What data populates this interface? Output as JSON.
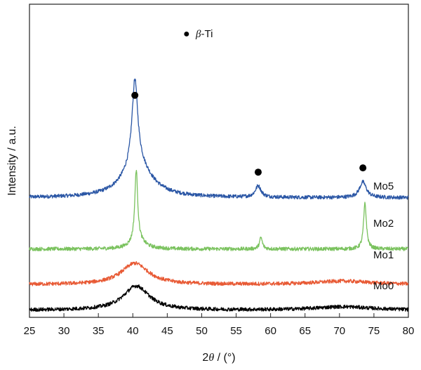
{
  "chart_data": {
    "type": "line",
    "title": "",
    "xlabel": {
      "prefix": "2",
      "symbol": "θ",
      "suffix": " / (°)"
    },
    "ylabel": "Intensity / a.u.",
    "xlim": [
      25,
      80
    ],
    "xticks": [
      25,
      30,
      35,
      40,
      45,
      50,
      55,
      60,
      65,
      70,
      75,
      80
    ],
    "ylim": [
      0,
      110
    ],
    "grid": false,
    "legend": {
      "marker": "●",
      "symbol": "β",
      "label": "-Ti",
      "placement": "top-center"
    },
    "marker_color": "#000000",
    "series": [
      {
        "name": "Mo5",
        "color": "#2a56a5",
        "baseline": 42,
        "peaks": [
          {
            "x": 40.3,
            "height": 30,
            "width": 0.5
          },
          {
            "x": 40.6,
            "height": 12,
            "width": 2.5
          },
          {
            "x": 58.2,
            "height": 4,
            "width": 0.5
          },
          {
            "x": 73.4,
            "height": 5.5,
            "width": 0.6
          }
        ],
        "beta_markers": [
          {
            "x": 40.3,
            "y": 78
          },
          {
            "x": 58.2,
            "y": 51
          },
          {
            "x": 73.4,
            "y": 52.5
          }
        ]
      },
      {
        "name": "Mo2",
        "color": "#7ac25e",
        "baseline": 24,
        "peaks": [
          {
            "x": 40.5,
            "height": 25,
            "width": 0.25
          },
          {
            "x": 40.7,
            "height": 3,
            "width": 1.2
          },
          {
            "x": 58.6,
            "height": 4,
            "width": 0.25
          },
          {
            "x": 73.7,
            "height": 16,
            "width": 0.25
          }
        ],
        "beta_markers": []
      },
      {
        "name": "Mo1",
        "color": "#e85a35",
        "baseline": 11.5,
        "peaks": [
          {
            "x": 40.3,
            "height": 7.5,
            "width": 2.4
          },
          {
            "x": 70.5,
            "height": 1.2,
            "width": 5
          }
        ],
        "beta_markers": []
      },
      {
        "name": "Mo0",
        "color": "#000000",
        "baseline": 2.5,
        "peaks": [
          {
            "x": 40.5,
            "height": 8.5,
            "width": 2.3
          },
          {
            "x": 70.5,
            "height": 1.2,
            "width": 5
          }
        ],
        "beta_markers": []
      }
    ]
  }
}
